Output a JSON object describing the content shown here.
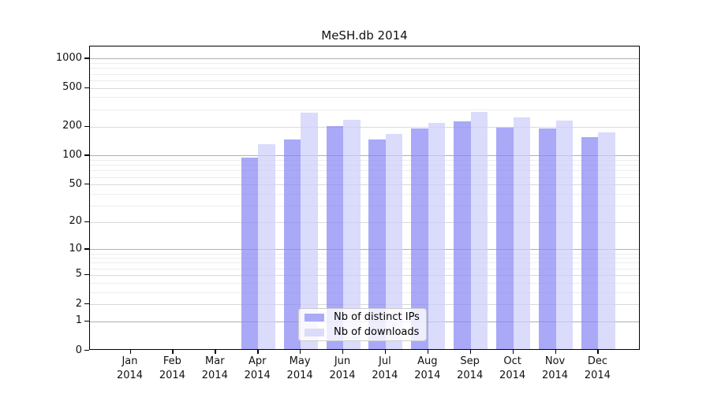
{
  "chart_data": {
    "type": "bar",
    "title": "MeSH.db 2014",
    "categories": [
      {
        "line1": "Jan",
        "line2": "2014"
      },
      {
        "line1": "Feb",
        "line2": "2014"
      },
      {
        "line1": "Mar",
        "line2": "2014"
      },
      {
        "line1": "Apr",
        "line2": "2014"
      },
      {
        "line1": "May",
        "line2": "2014"
      },
      {
        "line1": "Jun",
        "line2": "2014"
      },
      {
        "line1": "Jul",
        "line2": "2014"
      },
      {
        "line1": "Aug",
        "line2": "2014"
      },
      {
        "line1": "Sep",
        "line2": "2014"
      },
      {
        "line1": "Oct",
        "line2": "2014"
      },
      {
        "line1": "Nov",
        "line2": "2014"
      },
      {
        "line1": "Dec",
        "line2": "2014"
      }
    ],
    "series": [
      {
        "name": "Nb of distinct IPs",
        "color": "#abaaf6",
        "fill": "rgba(136,136,245,0.72)",
        "values": [
          0,
          0,
          0,
          92,
          141,
          193,
          141,
          183,
          216,
          189,
          183,
          150
        ]
      },
      {
        "name": "Nb of downloads",
        "color": "#dbdbfa",
        "fill": "rgba(205,205,250,0.72)",
        "values": [
          0,
          0,
          0,
          126,
          266,
          225,
          162,
          209,
          272,
          240,
          222,
          166
        ]
      }
    ],
    "yscale": "symlog",
    "yticks": [
      0,
      1,
      2,
      5,
      10,
      20,
      50,
      100,
      200,
      500,
      1000
    ],
    "ylim": [
      0,
      1332
    ],
    "grid": {
      "decade_color": "#b0b0b0",
      "sub_color": "#d9d9d9",
      "minor_color": "#ededed"
    },
    "frame_color": "#000000",
    "background": "#ffffff",
    "legend_position": "inside-bottom-center"
  }
}
